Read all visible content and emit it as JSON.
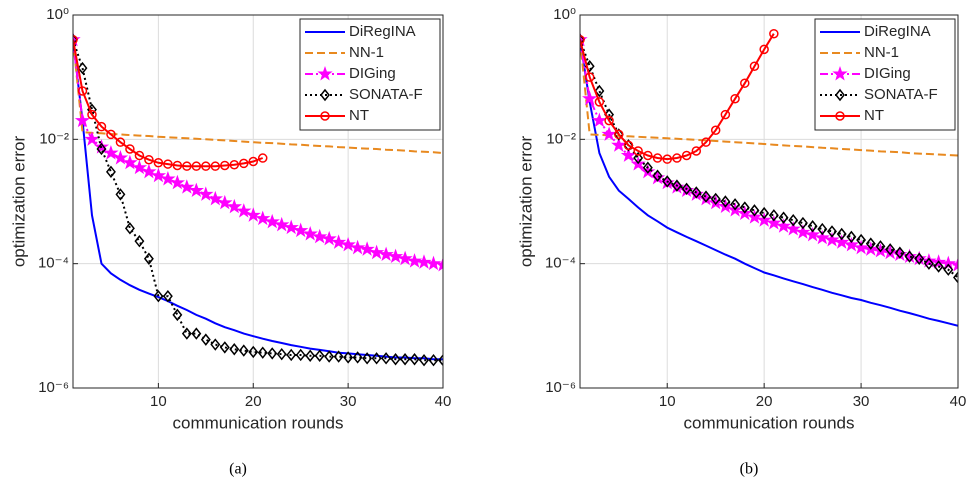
{
  "chart_data": [
    {
      "type": "line",
      "caption": "(a)",
      "xlabel": "communication rounds",
      "ylabel": "optimization error",
      "x": [
        1,
        2,
        3,
        4,
        5,
        6,
        7,
        8,
        9,
        10,
        11,
        12,
        13,
        14,
        15,
        16,
        17,
        18,
        19,
        20,
        21,
        22,
        23,
        24,
        25,
        26,
        27,
        28,
        29,
        30,
        31,
        32,
        33,
        34,
        35,
        36,
        37,
        38,
        39,
        40
      ],
      "xlim": [
        1,
        40
      ],
      "xticks": [
        10,
        20,
        30,
        40
      ],
      "ylim": [
        1e-06,
        1
      ],
      "log_y": true,
      "grid": true,
      "legend": "upper right",
      "yticks": [
        {
          "value": 1e-06,
          "label": "10⁻⁶"
        },
        {
          "value": 0.0001,
          "label": "10⁻⁴"
        },
        {
          "value": 0.01,
          "label": "10⁻²"
        },
        {
          "value": 1,
          "label": "10⁰"
        }
      ],
      "series": [
        {
          "name": "DiRegINA",
          "color": "#0000ff",
          "style": "solid",
          "marker": "none",
          "values": [
            0.4,
            0.02,
            0.0006,
            0.0001,
            7e-05,
            5.5e-05,
            4.5e-05,
            3.8e-05,
            3.3e-05,
            2.9e-05,
            2.5e-05,
            2.1e-05,
            1.8e-05,
            1.5e-05,
            1.3e-05,
            1.1e-05,
            9.5e-06,
            8.5e-06,
            7.5e-06,
            6.8e-06,
            6.2e-06,
            5.7e-06,
            5.3e-06,
            4.9e-06,
            4.6e-06,
            4.3e-06,
            4.1e-06,
            3.9e-06,
            3.7e-06,
            3.6e-06,
            3.5e-06,
            3.4e-06,
            3.3e-06,
            3.2e-06,
            3.1e-06,
            3.1e-06,
            3e-06,
            3e-06,
            2.9e-06,
            2.9e-06
          ]
        },
        {
          "name": "NN-1",
          "color": "#e8891f",
          "style": "dashed",
          "marker": "none",
          "values": [
            0.4,
            0.013,
            0.0127,
            0.0125,
            0.0122,
            0.012,
            0.0117,
            0.0115,
            0.0113,
            0.011,
            0.0108,
            0.0106,
            0.0104,
            0.0102,
            0.01,
            0.0098,
            0.0096,
            0.0094,
            0.0092,
            0.009,
            0.0088,
            0.0087,
            0.0085,
            0.0083,
            0.0082,
            0.008,
            0.0078,
            0.0077,
            0.0075,
            0.0074,
            0.0072,
            0.0071,
            0.007,
            0.0068,
            0.0067,
            0.0066,
            0.0064,
            0.0063,
            0.0062,
            0.006
          ]
        },
        {
          "name": "DIGing",
          "color": "#ff00ff",
          "style": "dashdot",
          "marker": "star",
          "values": [
            0.4,
            0.02,
            0.01,
            0.0075,
            0.006,
            0.005,
            0.0042,
            0.0035,
            0.003,
            0.0026,
            0.0023,
            0.002,
            0.0017,
            0.0015,
            0.0013,
            0.0011,
            0.00095,
            0.00082,
            0.0007,
            0.0006,
            0.00053,
            0.00047,
            0.00042,
            0.00038,
            0.00034,
            0.0003,
            0.00027,
            0.00025,
            0.00022,
            0.0002,
            0.00018,
            0.00017,
            0.00015,
            0.00014,
            0.00013,
            0.00012,
            0.00011,
            0.000105,
            0.0001,
            9.5e-05
          ]
        },
        {
          "name": "SONATA-F",
          "color": "#000000",
          "style": "dotted",
          "marker": "diamond",
          "values": [
            0.4,
            0.14,
            0.03,
            0.007,
            0.003,
            0.0013,
            0.00037,
            0.00023,
            0.00012,
            3e-05,
            3e-05,
            1.5e-05,
            7.5e-06,
            7.5e-06,
            6e-06,
            5e-06,
            4.5e-06,
            4.2e-06,
            4e-06,
            3.8e-06,
            3.7e-06,
            3.6e-06,
            3.5e-06,
            3.4e-06,
            3.4e-06,
            3.3e-06,
            3.3e-06,
            3.2e-06,
            3.2e-06,
            3.1e-06,
            3.1e-06,
            3e-06,
            3e-06,
            3e-06,
            2.9e-06,
            2.9e-06,
            2.9e-06,
            2.8e-06,
            2.8e-06,
            2.8e-06
          ]
        },
        {
          "name": "NT",
          "color": "#ff0000",
          "style": "solid",
          "marker": "circle",
          "values": [
            0.4,
            0.06,
            0.025,
            0.016,
            0.012,
            0.009,
            0.007,
            0.0055,
            0.0047,
            0.0042,
            0.004,
            0.0038,
            0.0037,
            0.0037,
            0.0037,
            0.0037,
            0.0038,
            0.0039,
            0.0041,
            0.0044,
            0.005,
            null,
            null,
            null,
            null,
            null,
            null,
            null,
            null,
            null,
            null,
            null,
            null,
            null,
            null,
            null,
            null,
            null,
            null,
            null
          ]
        }
      ]
    },
    {
      "type": "line",
      "caption": "(b)",
      "xlabel": "communication rounds",
      "ylabel": "optimization error",
      "x": [
        1,
        2,
        3,
        4,
        5,
        6,
        7,
        8,
        9,
        10,
        11,
        12,
        13,
        14,
        15,
        16,
        17,
        18,
        19,
        20,
        21,
        22,
        23,
        24,
        25,
        26,
        27,
        28,
        29,
        30,
        31,
        32,
        33,
        34,
        35,
        36,
        37,
        38,
        39,
        40
      ],
      "xlim": [
        1,
        40
      ],
      "xticks": [
        10,
        20,
        30,
        40
      ],
      "ylim": [
        1e-06,
        1
      ],
      "log_y": true,
      "grid": true,
      "legend": "upper right",
      "yticks": [
        {
          "value": 1e-06,
          "label": "10⁻⁶"
        },
        {
          "value": 0.0001,
          "label": "10⁻⁴"
        },
        {
          "value": 0.01,
          "label": "10⁻²"
        },
        {
          "value": 1,
          "label": "10⁰"
        }
      ],
      "series": [
        {
          "name": "DiRegINA",
          "color": "#0000ff",
          "style": "solid",
          "marker": "none",
          "values": [
            0.4,
            0.04,
            0.006,
            0.0025,
            0.0015,
            0.0011,
            0.0008,
            0.0006,
            0.00048,
            0.00038,
            0.00032,
            0.00027,
            0.00023,
            0.000195,
            0.000165,
            0.00014,
            0.00012,
            0.0001,
            8.5e-05,
            7.2e-05,
            6.5e-05,
            5.8e-05,
            5.2e-05,
            4.7e-05,
            4.2e-05,
            3.8e-05,
            3.4e-05,
            3.1e-05,
            2.8e-05,
            2.6e-05,
            2.35e-05,
            2.15e-05,
            1.95e-05,
            1.75e-05,
            1.6e-05,
            1.45e-05,
            1.3e-05,
            1.2e-05,
            1.1e-05,
            1e-05
          ]
        },
        {
          "name": "NN-1",
          "color": "#e8891f",
          "style": "dashed",
          "marker": "none",
          "values": [
            0.4,
            0.012,
            0.0118,
            0.0116,
            0.0114,
            0.0112,
            0.011,
            0.0108,
            0.0106,
            0.0104,
            0.0102,
            0.01,
            0.0098,
            0.0096,
            0.0094,
            0.0092,
            0.009,
            0.0088,
            0.0086,
            0.0084,
            0.0082,
            0.008,
            0.0078,
            0.0077,
            0.0075,
            0.0073,
            0.0072,
            0.007,
            0.0069,
            0.0067,
            0.0066,
            0.0064,
            0.0063,
            0.0062,
            0.006,
            0.0059,
            0.0058,
            0.0057,
            0.0056,
            0.0055
          ]
        },
        {
          "name": "DIGing",
          "color": "#ff00ff",
          "style": "dashdot",
          "marker": "star",
          "values": [
            0.4,
            0.045,
            0.02,
            0.012,
            0.008,
            0.0055,
            0.004,
            0.003,
            0.0024,
            0.002,
            0.0017,
            0.0015,
            0.0013,
            0.0011,
            0.00095,
            0.00083,
            0.00073,
            0.00064,
            0.00056,
            0.0005,
            0.00045,
            0.0004,
            0.00036,
            0.00032,
            0.00029,
            0.00026,
            0.00024,
            0.00022,
            0.0002,
            0.00018,
            0.00017,
            0.00016,
            0.00015,
            0.00014,
            0.00013,
            0.00012,
            0.00011,
            0.000105,
            0.0001,
            9.5e-05
          ]
        },
        {
          "name": "SONATA-F",
          "color": "#000000",
          "style": "dotted",
          "marker": "diamond",
          "values": [
            0.4,
            0.15,
            0.06,
            0.025,
            0.012,
            0.008,
            0.005,
            0.0035,
            0.0026,
            0.0021,
            0.0018,
            0.0016,
            0.0014,
            0.0012,
            0.0011,
            0.001,
            0.0009,
            0.0008,
            0.00072,
            0.00065,
            0.0006,
            0.00055,
            0.0005,
            0.00045,
            0.0004,
            0.00036,
            0.00033,
            0.0003,
            0.00027,
            0.00024,
            0.00021,
            0.00019,
            0.00017,
            0.00015,
            0.00013,
            0.00012,
            0.0001,
            9e-05,
            8e-05,
            6e-05
          ]
        },
        {
          "name": "NT",
          "color": "#ff0000",
          "style": "solid",
          "marker": "circle",
          "values": [
            0.4,
            0.1,
            0.04,
            0.02,
            0.012,
            0.008,
            0.0065,
            0.0055,
            0.005,
            0.0048,
            0.005,
            0.0055,
            0.0065,
            0.009,
            0.014,
            0.025,
            0.045,
            0.08,
            0.15,
            0.28,
            0.5,
            null,
            null,
            null,
            null,
            null,
            null,
            null,
            null,
            null,
            null,
            null,
            null,
            null,
            null,
            null,
            null,
            null,
            null,
            null
          ]
        }
      ]
    }
  ]
}
